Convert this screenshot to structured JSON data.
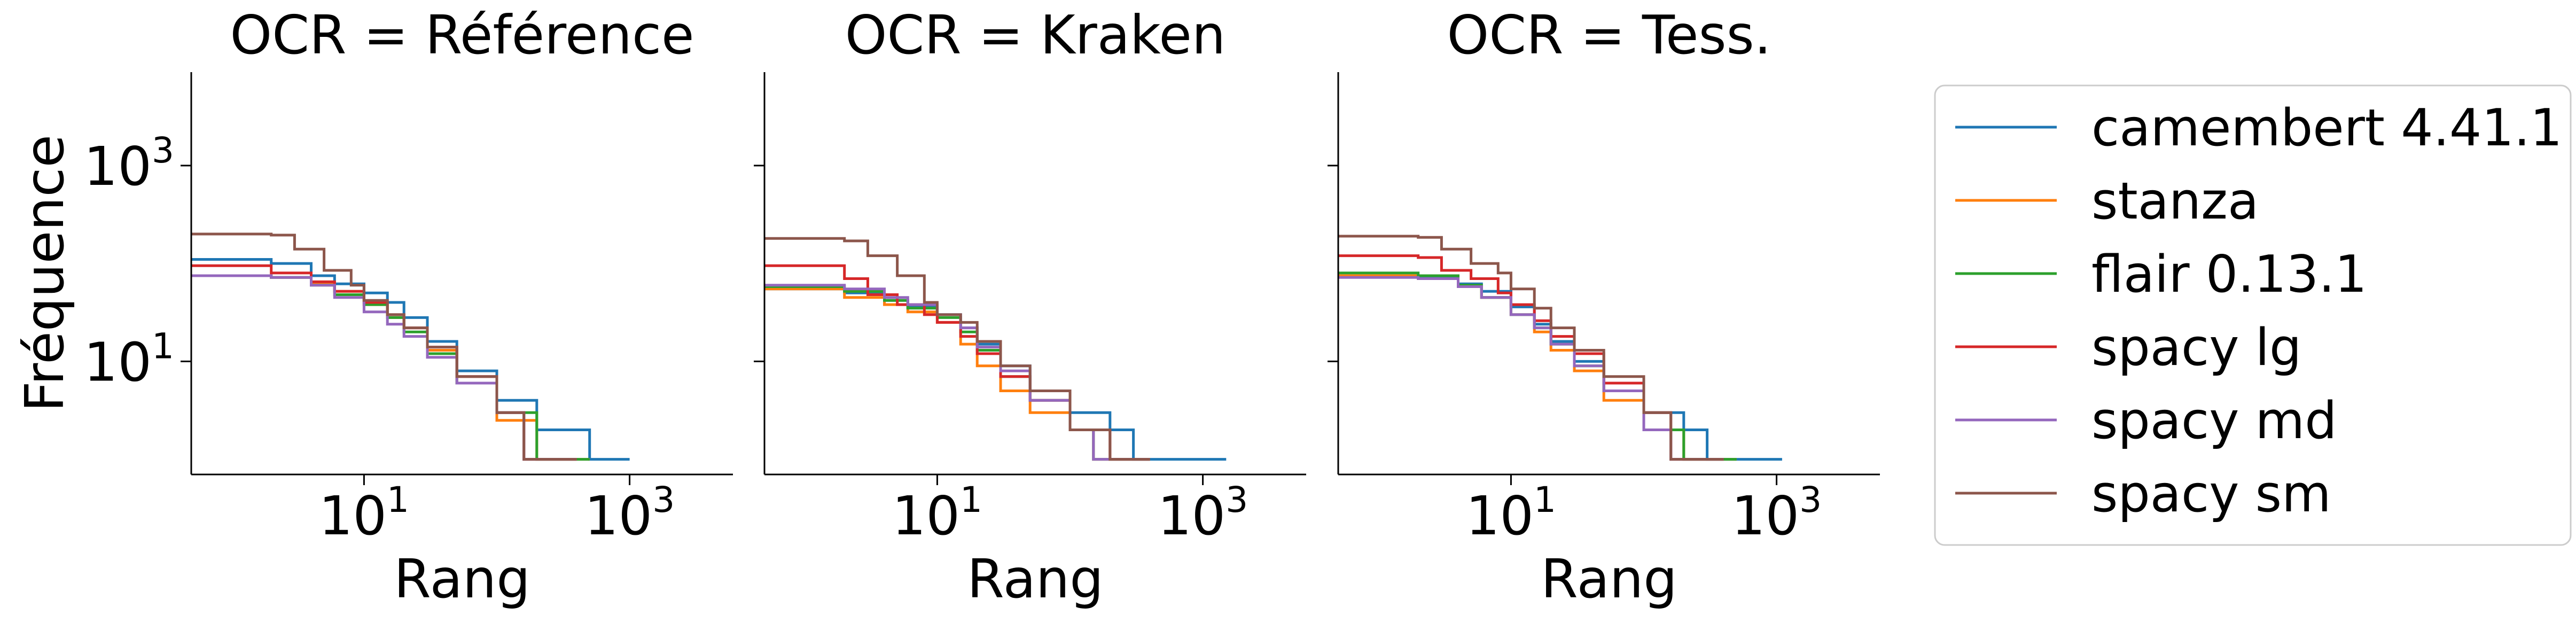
{
  "chart_data": {
    "type": "line",
    "x_scale": "log",
    "y_scale": "log",
    "xlim": [
      0.5,
      6000
    ],
    "ylim": [
      0.7,
      9000
    ],
    "shared_y": true,
    "ylabel": "Fréquence",
    "x_ticks": [
      {
        "base": "10",
        "exp": "1",
        "value": 10
      },
      {
        "base": "10",
        "exp": "3",
        "value": 1000
      }
    ],
    "y_ticks": [
      {
        "base": "10",
        "exp": "1",
        "value": 10
      },
      {
        "base": "10",
        "exp": "3",
        "value": 1000
      }
    ],
    "legend_position": "right",
    "grid": false,
    "colors": {
      "camembert 4.41.1": "#1f77b4",
      "stanza": "#ff7f0e",
      "flair 0.13.1": "#2ca02c",
      "spacy lg": "#d62728",
      "spacy md": "#9467bd",
      "spacy sm": "#8c564b"
    },
    "panels": [
      {
        "title": "OCR = Référence",
        "xlabel": "Rang",
        "series": [
          {
            "name": "camembert 4.41.1",
            "x": [
              1,
              2,
              4,
              6,
              10,
              15,
              20,
              30,
              50,
              100,
              200,
              300,
              500,
              1000
            ],
            "y": [
              110,
              100,
              75,
              62,
              50,
              40,
              28,
              16,
              8,
              4,
              2,
              2,
              1,
              1
            ]
          },
          {
            "name": "stanza",
            "x": [
              1,
              2,
              4,
              6,
              10,
              15,
              20,
              30,
              50,
              100,
              200,
              500
            ],
            "y": [
              75,
              72,
              62,
              52,
              38,
              28,
              22,
              13,
              6,
              2.5,
              1,
              1
            ]
          },
          {
            "name": "flair 0.13.1",
            "x": [
              1,
              2,
              4,
              6,
              10,
              15,
              20,
              30,
              50,
              100,
              200,
              500
            ],
            "y": [
              75,
              72,
              60,
              48,
              38,
              28,
              20,
              12,
              6,
              3,
              1,
              1
            ]
          },
          {
            "name": "spacy lg",
            "x": [
              1,
              2,
              4,
              6,
              10,
              15,
              20,
              30,
              50,
              100,
              160,
              400
            ],
            "y": [
              95,
              80,
              65,
              52,
              40,
              30,
              22,
              14,
              7,
              3,
              1,
              1
            ]
          },
          {
            "name": "spacy md",
            "x": [
              1,
              2,
              4,
              6,
              10,
              15,
              20,
              30,
              50,
              100,
              160,
              400
            ],
            "y": [
              75,
              72,
              60,
              45,
              32,
              24,
              18,
              11,
              6,
              3,
              1,
              1
            ]
          },
          {
            "name": "spacy sm",
            "x": [
              1,
              2,
              3,
              5,
              8,
              10,
              15,
              20,
              30,
              50,
              100,
              160,
              400
            ],
            "y": [
              200,
              195,
              140,
              85,
              60,
              42,
              30,
              22,
              14,
              7,
              3,
              1,
              1
            ]
          }
        ]
      },
      {
        "title": "OCR = Kraken",
        "xlabel": "Rang",
        "series": [
          {
            "name": "camembert 4.41.1",
            "x": [
              1,
              2,
              4,
              6,
              10,
              15,
              20,
              30,
              50,
              100,
              200,
              300,
              500,
              1500
            ],
            "y": [
              55,
              50,
              42,
              36,
              30,
              22,
              15,
              9,
              5,
              3,
              2,
              1,
              1,
              1
            ]
          },
          {
            "name": "stanza",
            "x": [
              1,
              2,
              4,
              6,
              10,
              15,
              20,
              30,
              50,
              100,
              150,
              400
            ],
            "y": [
              55,
              45,
              38,
              32,
              25,
              15,
              9,
              5,
              3,
              2,
              1,
              1
            ]
          },
          {
            "name": "flair 0.13.1",
            "x": [
              1,
              2,
              4,
              6,
              10,
              15,
              20,
              30,
              50,
              100,
              150,
              400
            ],
            "y": [
              58,
              52,
              42,
              35,
              28,
              20,
              13,
              7,
              4,
              2,
              1,
              1
            ]
          },
          {
            "name": "spacy lg",
            "x": [
              1,
              2,
              3,
              5,
              8,
              10,
              15,
              20,
              30,
              50,
              100,
              200,
              400
            ],
            "y": [
              95,
              70,
              48,
              38,
              30,
              25,
              18,
              12,
              7,
              4,
              2,
              1,
              1
            ]
          },
          {
            "name": "spacy md",
            "x": [
              1,
              2,
              4,
              6,
              10,
              15,
              20,
              30,
              50,
              100,
              150,
              400
            ],
            "y": [
              60,
              55,
              45,
              38,
              30,
              22,
              14,
              8,
              4,
              2,
              1,
              1
            ]
          },
          {
            "name": "spacy sm",
            "x": [
              1,
              2,
              3,
              5,
              8,
              10,
              15,
              20,
              30,
              50,
              100,
              200,
              400
            ],
            "y": [
              180,
              170,
              120,
              75,
              40,
              30,
              25,
              16,
              9,
              5,
              2,
              1,
              1
            ]
          }
        ]
      },
      {
        "title": "OCR = Tess.",
        "xlabel": "Rang",
        "series": [
          {
            "name": "camembert 4.41.1",
            "x": [
              1,
              2,
              4,
              6,
              10,
              15,
              20,
              30,
              50,
              100,
              200,
              300,
              500,
              1100
            ],
            "y": [
              75,
              72,
              62,
              52,
              36,
              24,
              16,
              10,
              6,
              3,
              2,
              1,
              1,
              1
            ]
          },
          {
            "name": "stanza",
            "x": [
              1,
              2,
              4,
              6,
              10,
              15,
              20,
              30,
              50,
              100,
              200,
              500
            ],
            "y": [
              75,
              70,
              58,
              45,
              30,
              20,
              13,
              8,
              4,
              2,
              1,
              1
            ]
          },
          {
            "name": "flair 0.13.1",
            "x": [
              1,
              2,
              4,
              6,
              10,
              15,
              20,
              30,
              50,
              100,
              200,
              500
            ],
            "y": [
              80,
              75,
              60,
              45,
              30,
              22,
              15,
              9,
              5,
              2,
              1,
              1
            ]
          },
          {
            "name": "spacy lg",
            "x": [
              1,
              2,
              3,
              5,
              8,
              10,
              15,
              20,
              30,
              50,
              100,
              160,
              400
            ],
            "y": [
              120,
              115,
              85,
              70,
              50,
              38,
              26,
              18,
              12,
              6,
              3,
              1,
              1
            ]
          },
          {
            "name": "spacy md",
            "x": [
              1,
              2,
              4,
              6,
              10,
              15,
              20,
              30,
              50,
              100,
              160,
              400
            ],
            "y": [
              72,
              70,
              58,
              45,
              30,
              22,
              15,
              9,
              5,
              2,
              1,
              1
            ]
          },
          {
            "name": "spacy sm",
            "x": [
              1,
              2,
              3,
              5,
              8,
              10,
              15,
              20,
              30,
              50,
              100,
              160,
              400
            ],
            "y": [
              190,
              185,
              140,
              100,
              80,
              55,
              35,
              22,
              13,
              7,
              3,
              1,
              1
            ]
          }
        ]
      }
    ]
  }
}
